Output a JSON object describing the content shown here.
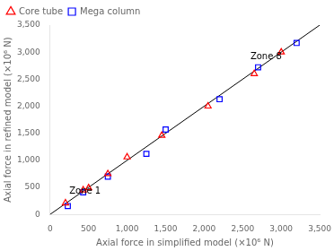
{
  "chart_data": {
    "type": "scatter",
    "xlabel": "Axial force in simplified model (×10⁶ N)",
    "ylabel": "Axial force in refined model (×10⁶ N)",
    "series": [
      {
        "name": "Core tube",
        "type": "scatter",
        "marker": "triangle",
        "color": "#ff0000",
        "x": [
          200,
          430,
          500,
          750,
          1000,
          1450,
          2050,
          2650,
          3000
        ],
        "values": [
          210,
          450,
          490,
          750,
          1060,
          1460,
          2000,
          2600,
          3000
        ]
      },
      {
        "name": "Mega column",
        "type": "scatter",
        "marker": "square",
        "color": "#0000ff",
        "x": [
          230,
          430,
          750,
          1250,
          1500,
          2200,
          2700,
          3200
        ],
        "values": [
          155,
          410,
          700,
          1120,
          1570,
          2130,
          2720,
          3170
        ]
      },
      {
        "type": "line",
        "line_style": "solid",
        "color": "#000000",
        "x": [
          0,
          3500
        ],
        "values": [
          0,
          3500
        ]
      }
    ],
    "annotations": [
      {
        "text": "Zone 1",
        "x": 250,
        "y": 390
      },
      {
        "text": "Zone 8",
        "x": 2600,
        "y": 2870
      }
    ],
    "xlim": [
      0,
      3500
    ],
    "ylim": [
      0,
      3500
    ],
    "xticks": [
      0,
      500,
      1000,
      1500,
      2000,
      2500,
      3000,
      3500
    ],
    "yticks": [
      0,
      500,
      1000,
      1500,
      2000,
      2500,
      3000,
      3500
    ],
    "grid": false,
    "legend": "upper left"
  }
}
